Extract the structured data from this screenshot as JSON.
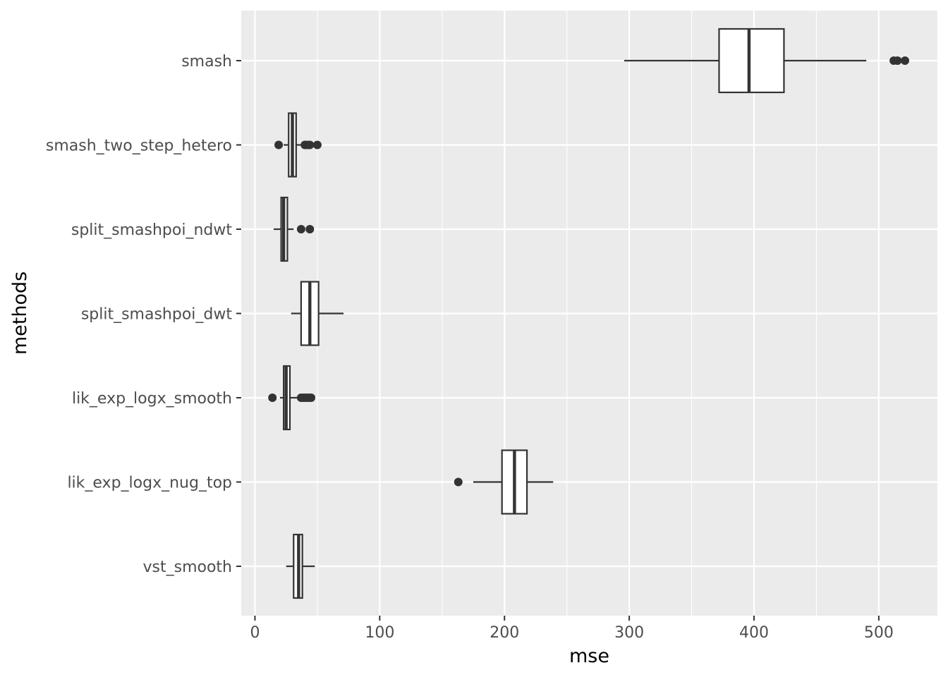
{
  "chart_data": {
    "type": "boxplot",
    "orientation": "horizontal",
    "xlabel": "mse",
    "ylabel": "methods",
    "xlim": [
      -11,
      547
    ],
    "xticks": [
      0,
      100,
      200,
      300,
      400,
      500
    ],
    "xticks_labels": [
      "0",
      "100",
      "200",
      "300",
      "400",
      "500"
    ],
    "xminor": [
      50,
      150,
      250,
      350,
      450
    ],
    "grid": true,
    "legend": "none",
    "colors": {
      "panel": "#ebebeb",
      "grid": "#ffffff",
      "box_fill": "#ffffff",
      "stroke": "#333333",
      "outlier": "#333333"
    },
    "categories": [
      "smash",
      "smash_two_step_hetero",
      "split_smashpoi_ndwt",
      "split_smashpoi_dwt",
      "lik_exp_logx_smooth",
      "lik_exp_logx_nug_top",
      "vst_smooth"
    ],
    "boxes": [
      {
        "method": "smash",
        "whisker_low": 296,
        "q1": 372,
        "median": 396,
        "q3": 424,
        "whisker_high": 490,
        "outliers": [
          512,
          515,
          521
        ]
      },
      {
        "method": "smash_two_step_hetero",
        "whisker_low": 23,
        "q1": 27,
        "median": 30,
        "q3": 33,
        "whisker_high": 37,
        "outliers": [
          19,
          40,
          42,
          44,
          50
        ]
      },
      {
        "method": "split_smashpoi_ndwt",
        "whisker_low": 15,
        "q1": 21,
        "median": 23,
        "q3": 26,
        "whisker_high": 31,
        "outliers": [
          37,
          44
        ]
      },
      {
        "method": "split_smashpoi_dwt",
        "whisker_low": 29,
        "q1": 37,
        "median": 44,
        "q3": 51,
        "whisker_high": 71,
        "outliers": []
      },
      {
        "method": "lik_exp_logx_smooth",
        "whisker_low": 20,
        "q1": 23,
        "median": 25,
        "q3": 28,
        "whisker_high": 34,
        "outliers": [
          14,
          37,
          39,
          41,
          43,
          45
        ]
      },
      {
        "method": "lik_exp_logx_nug_top",
        "whisker_low": 175,
        "q1": 198,
        "median": 208,
        "q3": 218,
        "whisker_high": 239,
        "outliers": [
          163
        ]
      },
      {
        "method": "vst_smooth",
        "whisker_low": 25,
        "q1": 31,
        "median": 35,
        "q3": 38,
        "whisker_high": 48,
        "outliers": []
      }
    ]
  }
}
